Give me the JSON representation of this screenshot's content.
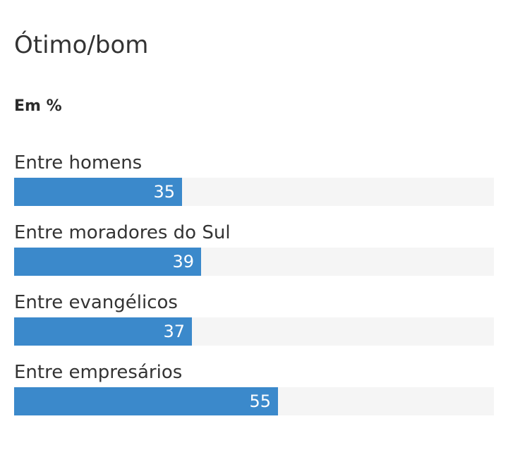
{
  "chart_data": {
    "type": "bar",
    "orientation": "horizontal",
    "title": "Ótimo/bom",
    "subtitle": "Em %",
    "categories": [
      "Entre homens",
      "Entre moradores do Sul",
      "Entre evangélicos",
      "Entre empresários"
    ],
    "values": [
      35,
      39,
      37,
      55
    ],
    "xlim": [
      0,
      100
    ],
    "grid": false,
    "legend": "none",
    "colors": {
      "bar": "#3b89cb",
      "track": "#f5f5f5",
      "value_text": "#ffffff",
      "label_text": "#333333"
    }
  }
}
